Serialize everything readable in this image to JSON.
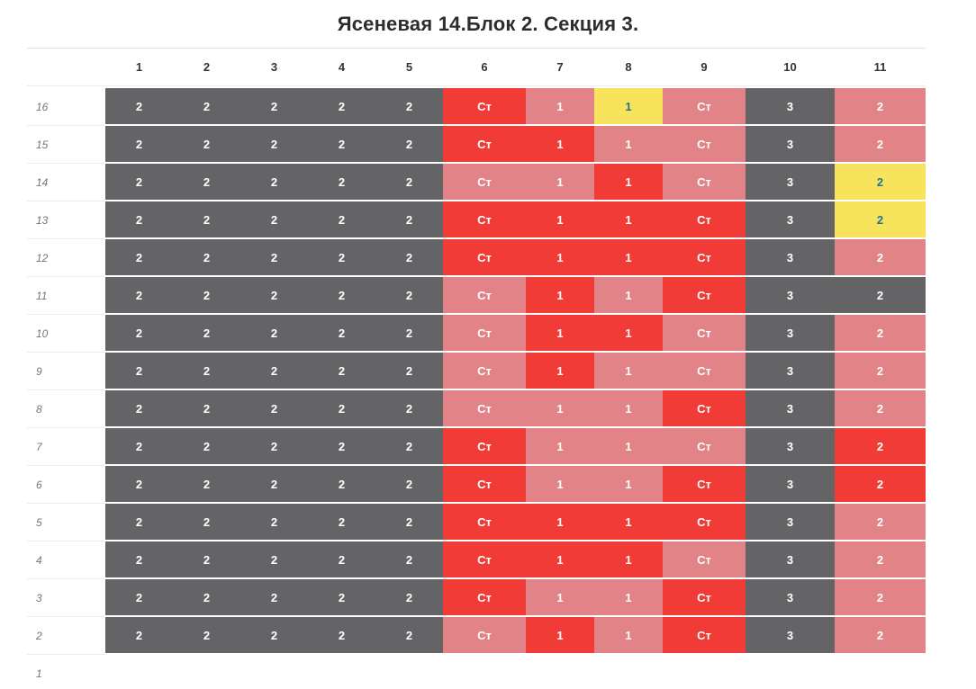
{
  "title": "Ясеневая 14.Блок 2. Секция 3.",
  "colors": {
    "gray": "#646466",
    "red": "#f13b36",
    "pink": "#e18387",
    "yellow": "#f8e45c",
    "yellow_text": "#1f7490",
    "cell_text": "#ffffff"
  },
  "grid": {
    "columns": [
      "1",
      "2",
      "3",
      "4",
      "5",
      "6",
      "7",
      "8",
      "9",
      "10",
      "11"
    ],
    "floors": [
      {
        "floor": "16",
        "cells": [
          {
            "value": "2",
            "color": "gray"
          },
          {
            "value": "2",
            "color": "gray"
          },
          {
            "value": "2",
            "color": "gray"
          },
          {
            "value": "2",
            "color": "gray"
          },
          {
            "value": "2",
            "color": "gray"
          },
          {
            "value": "Ст",
            "color": "red"
          },
          {
            "value": "1",
            "color": "pink"
          },
          {
            "value": "1",
            "color": "yellow"
          },
          {
            "value": "Ст",
            "color": "pink"
          },
          {
            "value": "3",
            "color": "gray"
          },
          {
            "value": "2",
            "color": "pink"
          }
        ]
      },
      {
        "floor": "15",
        "cells": [
          {
            "value": "2",
            "color": "gray"
          },
          {
            "value": "2",
            "color": "gray"
          },
          {
            "value": "2",
            "color": "gray"
          },
          {
            "value": "2",
            "color": "gray"
          },
          {
            "value": "2",
            "color": "gray"
          },
          {
            "value": "Ст",
            "color": "red"
          },
          {
            "value": "1",
            "color": "red"
          },
          {
            "value": "1",
            "color": "pink"
          },
          {
            "value": "Ст",
            "color": "pink"
          },
          {
            "value": "3",
            "color": "gray"
          },
          {
            "value": "2",
            "color": "pink"
          }
        ]
      },
      {
        "floor": "14",
        "cells": [
          {
            "value": "2",
            "color": "gray"
          },
          {
            "value": "2",
            "color": "gray"
          },
          {
            "value": "2",
            "color": "gray"
          },
          {
            "value": "2",
            "color": "gray"
          },
          {
            "value": "2",
            "color": "gray"
          },
          {
            "value": "Ст",
            "color": "pink"
          },
          {
            "value": "1",
            "color": "pink"
          },
          {
            "value": "1",
            "color": "red"
          },
          {
            "value": "Ст",
            "color": "pink"
          },
          {
            "value": "3",
            "color": "gray"
          },
          {
            "value": "2",
            "color": "yellow"
          }
        ]
      },
      {
        "floor": "13",
        "cells": [
          {
            "value": "2",
            "color": "gray"
          },
          {
            "value": "2",
            "color": "gray"
          },
          {
            "value": "2",
            "color": "gray"
          },
          {
            "value": "2",
            "color": "gray"
          },
          {
            "value": "2",
            "color": "gray"
          },
          {
            "value": "Ст",
            "color": "red"
          },
          {
            "value": "1",
            "color": "red"
          },
          {
            "value": "1",
            "color": "red"
          },
          {
            "value": "Ст",
            "color": "red"
          },
          {
            "value": "3",
            "color": "gray"
          },
          {
            "value": "2",
            "color": "yellow"
          }
        ]
      },
      {
        "floor": "12",
        "cells": [
          {
            "value": "2",
            "color": "gray"
          },
          {
            "value": "2",
            "color": "gray"
          },
          {
            "value": "2",
            "color": "gray"
          },
          {
            "value": "2",
            "color": "gray"
          },
          {
            "value": "2",
            "color": "gray"
          },
          {
            "value": "Ст",
            "color": "red"
          },
          {
            "value": "1",
            "color": "red"
          },
          {
            "value": "1",
            "color": "red"
          },
          {
            "value": "Ст",
            "color": "red"
          },
          {
            "value": "3",
            "color": "gray"
          },
          {
            "value": "2",
            "color": "pink"
          }
        ]
      },
      {
        "floor": "11",
        "cells": [
          {
            "value": "2",
            "color": "gray"
          },
          {
            "value": "2",
            "color": "gray"
          },
          {
            "value": "2",
            "color": "gray"
          },
          {
            "value": "2",
            "color": "gray"
          },
          {
            "value": "2",
            "color": "gray"
          },
          {
            "value": "Ст",
            "color": "pink"
          },
          {
            "value": "1",
            "color": "red"
          },
          {
            "value": "1",
            "color": "pink"
          },
          {
            "value": "Ст",
            "color": "red"
          },
          {
            "value": "3",
            "color": "gray"
          },
          {
            "value": "2",
            "color": "gray"
          }
        ]
      },
      {
        "floor": "10",
        "cells": [
          {
            "value": "2",
            "color": "gray"
          },
          {
            "value": "2",
            "color": "gray"
          },
          {
            "value": "2",
            "color": "gray"
          },
          {
            "value": "2",
            "color": "gray"
          },
          {
            "value": "2",
            "color": "gray"
          },
          {
            "value": "Ст",
            "color": "pink"
          },
          {
            "value": "1",
            "color": "red"
          },
          {
            "value": "1",
            "color": "red"
          },
          {
            "value": "Ст",
            "color": "pink"
          },
          {
            "value": "3",
            "color": "gray"
          },
          {
            "value": "2",
            "color": "pink"
          }
        ]
      },
      {
        "floor": "9",
        "cells": [
          {
            "value": "2",
            "color": "gray"
          },
          {
            "value": "2",
            "color": "gray"
          },
          {
            "value": "2",
            "color": "gray"
          },
          {
            "value": "2",
            "color": "gray"
          },
          {
            "value": "2",
            "color": "gray"
          },
          {
            "value": "Ст",
            "color": "pink"
          },
          {
            "value": "1",
            "color": "red"
          },
          {
            "value": "1",
            "color": "pink"
          },
          {
            "value": "Ст",
            "color": "pink"
          },
          {
            "value": "3",
            "color": "gray"
          },
          {
            "value": "2",
            "color": "pink"
          }
        ]
      },
      {
        "floor": "8",
        "cells": [
          {
            "value": "2",
            "color": "gray"
          },
          {
            "value": "2",
            "color": "gray"
          },
          {
            "value": "2",
            "color": "gray"
          },
          {
            "value": "2",
            "color": "gray"
          },
          {
            "value": "2",
            "color": "gray"
          },
          {
            "value": "Ст",
            "color": "pink"
          },
          {
            "value": "1",
            "color": "pink"
          },
          {
            "value": "1",
            "color": "pink"
          },
          {
            "value": "Ст",
            "color": "red"
          },
          {
            "value": "3",
            "color": "gray"
          },
          {
            "value": "2",
            "color": "pink"
          }
        ]
      },
      {
        "floor": "7",
        "cells": [
          {
            "value": "2",
            "color": "gray"
          },
          {
            "value": "2",
            "color": "gray"
          },
          {
            "value": "2",
            "color": "gray"
          },
          {
            "value": "2",
            "color": "gray"
          },
          {
            "value": "2",
            "color": "gray"
          },
          {
            "value": "Ст",
            "color": "red"
          },
          {
            "value": "1",
            "color": "pink"
          },
          {
            "value": "1",
            "color": "pink"
          },
          {
            "value": "Ст",
            "color": "pink"
          },
          {
            "value": "3",
            "color": "gray"
          },
          {
            "value": "2",
            "color": "red"
          }
        ]
      },
      {
        "floor": "6",
        "cells": [
          {
            "value": "2",
            "color": "gray"
          },
          {
            "value": "2",
            "color": "gray"
          },
          {
            "value": "2",
            "color": "gray"
          },
          {
            "value": "2",
            "color": "gray"
          },
          {
            "value": "2",
            "color": "gray"
          },
          {
            "value": "Ст",
            "color": "red"
          },
          {
            "value": "1",
            "color": "pink"
          },
          {
            "value": "1",
            "color": "pink"
          },
          {
            "value": "Ст",
            "color": "red"
          },
          {
            "value": "3",
            "color": "gray"
          },
          {
            "value": "2",
            "color": "red"
          }
        ]
      },
      {
        "floor": "5",
        "cells": [
          {
            "value": "2",
            "color": "gray"
          },
          {
            "value": "2",
            "color": "gray"
          },
          {
            "value": "2",
            "color": "gray"
          },
          {
            "value": "2",
            "color": "gray"
          },
          {
            "value": "2",
            "color": "gray"
          },
          {
            "value": "Ст",
            "color": "red"
          },
          {
            "value": "1",
            "color": "red"
          },
          {
            "value": "1",
            "color": "red"
          },
          {
            "value": "Ст",
            "color": "red"
          },
          {
            "value": "3",
            "color": "gray"
          },
          {
            "value": "2",
            "color": "pink"
          }
        ]
      },
      {
        "floor": "4",
        "cells": [
          {
            "value": "2",
            "color": "gray"
          },
          {
            "value": "2",
            "color": "gray"
          },
          {
            "value": "2",
            "color": "gray"
          },
          {
            "value": "2",
            "color": "gray"
          },
          {
            "value": "2",
            "color": "gray"
          },
          {
            "value": "Ст",
            "color": "red"
          },
          {
            "value": "1",
            "color": "red"
          },
          {
            "value": "1",
            "color": "red"
          },
          {
            "value": "Ст",
            "color": "pink"
          },
          {
            "value": "3",
            "color": "gray"
          },
          {
            "value": "2",
            "color": "pink"
          }
        ]
      },
      {
        "floor": "3",
        "cells": [
          {
            "value": "2",
            "color": "gray"
          },
          {
            "value": "2",
            "color": "gray"
          },
          {
            "value": "2",
            "color": "gray"
          },
          {
            "value": "2",
            "color": "gray"
          },
          {
            "value": "2",
            "color": "gray"
          },
          {
            "value": "Ст",
            "color": "red"
          },
          {
            "value": "1",
            "color": "pink"
          },
          {
            "value": "1",
            "color": "pink"
          },
          {
            "value": "Ст",
            "color": "red"
          },
          {
            "value": "3",
            "color": "gray"
          },
          {
            "value": "2",
            "color": "pink"
          }
        ]
      },
      {
        "floor": "2",
        "cells": [
          {
            "value": "2",
            "color": "gray"
          },
          {
            "value": "2",
            "color": "gray"
          },
          {
            "value": "2",
            "color": "gray"
          },
          {
            "value": "2",
            "color": "gray"
          },
          {
            "value": "2",
            "color": "gray"
          },
          {
            "value": "Ст",
            "color": "pink"
          },
          {
            "value": "1",
            "color": "red"
          },
          {
            "value": "1",
            "color": "pink"
          },
          {
            "value": "Ст",
            "color": "red"
          },
          {
            "value": "3",
            "color": "gray"
          },
          {
            "value": "2",
            "color": "pink"
          }
        ]
      },
      {
        "floor": "1",
        "cells": []
      }
    ]
  }
}
